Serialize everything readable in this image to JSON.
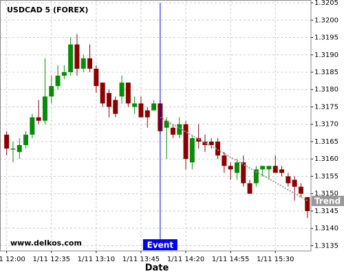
{
  "chart_data": {
    "type": "candlestick",
    "title": "USDCAD 5 (FOREX)",
    "watermark": "www.delkos.com",
    "x_label": "Date",
    "categories": [
      "1/11 12:00",
      null,
      null,
      null,
      null,
      null,
      null,
      "1/11 12:35",
      null,
      null,
      null,
      null,
      null,
      null,
      "1/11 13:10",
      null,
      null,
      null,
      null,
      null,
      null,
      "1/11 13:45",
      null,
      null,
      null,
      null,
      null,
      null,
      "1/11 14:20",
      null,
      null,
      null,
      null,
      null,
      null,
      "1/11 14:55",
      null,
      null,
      null,
      null,
      null,
      null,
      "1/11 15:30",
      null,
      null,
      null,
      null,
      null
    ],
    "open": [
      1.3167,
      1.3163,
      1.3162,
      1.3164,
      1.3167,
      1.3172,
      1.3171,
      1.3178,
      1.3181,
      1.3184,
      1.3185,
      1.3193,
      1.3186,
      1.3189,
      1.3186,
      1.3182,
      1.3179,
      1.3177,
      1.3178,
      1.3182,
      1.3175,
      1.3176,
      1.3174,
      1.3174,
      1.3176,
      1.3169,
      1.3169,
      1.3167,
      1.317,
      1.3159,
      1.3166,
      1.3165,
      1.3165,
      1.3165,
      1.3161,
      1.3158,
      1.3156,
      1.3159,
      1.3153,
      1.3153,
      1.3157,
      1.3157,
      1.3158,
      1.3157,
      1.3155,
      1.3154,
      1.3152,
      1.3149
    ],
    "high": [
      1.3168,
      1.3165,
      1.3166,
      1.3168,
      1.3173,
      1.3177,
      1.3189,
      1.3184,
      1.3187,
      1.3187,
      1.3195,
      1.3196,
      1.319,
      1.3193,
      1.3187,
      1.3182,
      1.318,
      1.3178,
      1.3184,
      1.3182,
      1.3178,
      1.3178,
      1.3175,
      1.3177,
      1.3177,
      1.3172,
      1.317,
      1.3172,
      1.3171,
      1.3167,
      1.317,
      1.3167,
      1.3166,
      1.3166,
      1.3162,
      1.3159,
      1.316,
      1.3161,
      1.3154,
      1.3158,
      1.3158,
      1.3158,
      1.3161,
      1.3158,
      1.3156,
      1.3155,
      1.3153,
      1.3149
    ],
    "low": [
      1.3161,
      1.3159,
      1.316,
      1.3163,
      1.3166,
      1.317,
      1.317,
      1.3176,
      1.318,
      1.3183,
      1.3184,
      1.3184,
      1.3185,
      1.3185,
      1.3179,
      1.3175,
      1.3172,
      1.3172,
      1.3176,
      1.3175,
      1.3173,
      1.3172,
      1.3169,
      1.3174,
      1.3167,
      1.316,
      1.3166,
      1.3166,
      1.3157,
      1.3157,
      1.3163,
      1.3162,
      1.3163,
      1.316,
      1.3156,
      1.3154,
      1.3154,
      1.3152,
      1.315,
      1.3152,
      1.3155,
      1.3154,
      1.3156,
      1.3155,
      1.3152,
      1.3148,
      1.3149,
      1.3143
    ],
    "close": [
      1.3163,
      1.3163,
      1.3164,
      1.3167,
      1.3172,
      1.3171,
      1.3178,
      1.3181,
      1.3184,
      1.3185,
      1.3193,
      1.3186,
      1.3189,
      1.3186,
      1.3181,
      1.3176,
      1.3175,
      1.3173,
      1.3182,
      1.3176,
      1.3176,
      1.3172,
      1.3172,
      1.3176,
      1.3168,
      1.3171,
      1.3167,
      1.317,
      1.316,
      1.3166,
      1.3165,
      1.3164,
      1.3164,
      1.3161,
      1.3158,
      1.3157,
      1.3159,
      1.3153,
      1.315,
      1.3157,
      1.3158,
      1.3158,
      1.3156,
      1.3156,
      1.3153,
      1.3152,
      1.315,
      1.3145
    ],
    "up_color": "#0a8a0a",
    "down_color": "#8b0000",
    "trend": {
      "name": "Trend",
      "color": "#999999",
      "values": [
        null,
        null,
        null,
        null,
        null,
        null,
        null,
        null,
        null,
        null,
        null,
        null,
        null,
        null,
        null,
        null,
        null,
        null,
        null,
        null,
        null,
        null,
        null,
        null,
        1.3172,
        1.3171,
        1.31699,
        1.31689,
        1.31678,
        1.31668,
        1.31657,
        1.31647,
        1.31637,
        1.31626,
        1.31616,
        1.31605,
        1.31595,
        1.31584,
        1.31574,
        1.31563,
        1.31553,
        1.31543,
        1.31532,
        1.31522,
        1.31511,
        1.31501,
        1.3149,
        1.3148
      ]
    },
    "event_labels": [
      null,
      null,
      null,
      null,
      null,
      null,
      null,
      null,
      null,
      null,
      null,
      null,
      null,
      null,
      null,
      null,
      null,
      null,
      null,
      null,
      null,
      null,
      null,
      null,
      "Event",
      null,
      null,
      null,
      null,
      null,
      null,
      null,
      null,
      null,
      null,
      null,
      null,
      null,
      null,
      null,
      null,
      null,
      null,
      null,
      null,
      null,
      null,
      null
    ],
    "event_color": "#0000ee",
    "ylim": [
      1.31335,
      1.32058
    ],
    "yticks": [
      1.3135,
      {
        "value": 1.314,
        "label": "1.3140"
      },
      1.3145,
      {
        "value": 1.315,
        "label": "1.3150"
      },
      1.3155,
      {
        "value": 1.316,
        "label": "1.3160"
      },
      1.3165,
      {
        "value": 1.317,
        "label": "1.3170"
      },
      1.3175,
      {
        "value": 1.318,
        "label": "1.3180"
      },
      1.3185,
      {
        "value": 1.319,
        "label": "1.3190"
      },
      1.3195,
      {
        "value": 1.32,
        "label": "1.3200"
      },
      1.3205
    ],
    "grid": true
  }
}
